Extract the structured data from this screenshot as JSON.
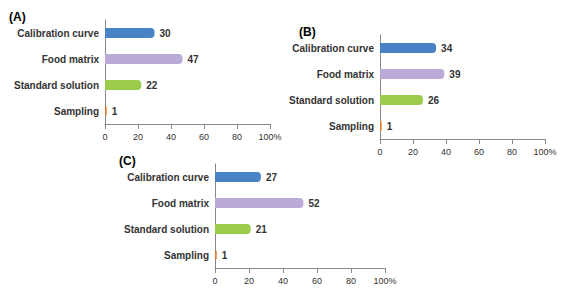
{
  "chart_data": [
    {
      "type": "bar",
      "title": "(A)",
      "orientation": "horizontal",
      "categories": [
        "Calibration curve",
        "Food matrix",
        "Standard solution",
        "Sampling"
      ],
      "values": [
        30,
        47,
        22,
        1
      ],
      "colors": [
        "#4a82c6",
        "#b9aad8",
        "#9ccc4c",
        "#e0782a"
      ],
      "xlim": [
        0,
        100
      ],
      "xticks": [
        0,
        20,
        40,
        60,
        80,
        {
          "value": 100,
          "label": "100%"
        }
      ],
      "data_labels": true,
      "grid": false
    },
    {
      "type": "bar",
      "title": "(B)",
      "orientation": "horizontal",
      "categories": [
        "Calibration curve",
        "Food matrix",
        "Standard solution",
        "Sampling"
      ],
      "values": [
        34,
        39,
        26,
        1
      ],
      "colors": [
        "#4a82c6",
        "#b9aad8",
        "#9ccc4c",
        "#e0782a"
      ],
      "xlim": [
        0,
        100
      ],
      "xticks": [
        0,
        20,
        40,
        60,
        80,
        {
          "value": 100,
          "label": "100%"
        }
      ],
      "data_labels": true,
      "grid": false
    },
    {
      "type": "bar",
      "title": "(C)",
      "orientation": "horizontal",
      "categories": [
        "Calibration curve",
        "Food matrix",
        "Standard solution",
        "Sampling"
      ],
      "values": [
        27,
        52,
        21,
        1
      ],
      "colors": [
        "#4a82c6",
        "#b9aad8",
        "#9ccc4c",
        "#e0782a"
      ],
      "xlim": [
        0,
        100
      ],
      "xticks": [
        0,
        20,
        40,
        60,
        80,
        {
          "value": 100,
          "label": "100%"
        }
      ],
      "data_labels": true,
      "grid": false
    }
  ]
}
